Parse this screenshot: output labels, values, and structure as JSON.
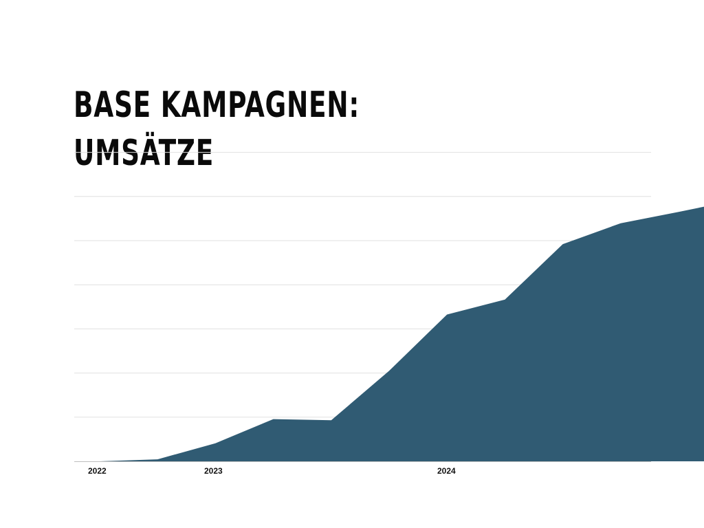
{
  "title_lines": [
    "BASE KAMPAGNEN:",
    "UMSÄTZE"
  ],
  "colors": {
    "area": "#305b73",
    "grid": "#e0e0e0",
    "axis": "#bdbdbd"
  },
  "chart_data": {
    "type": "area",
    "title": "BASE KAMPAGNEN: UMSÄTZE",
    "xlabel": "",
    "ylabel": "",
    "x": [
      2022.0,
      2022.25,
      2022.5,
      2022.75,
      2023.0,
      2023.25,
      2023.5,
      2023.75,
      2024.0,
      2024.25,
      2024.5,
      2024.75
    ],
    "values": [
      0.0,
      0.5,
      4.5,
      10.5,
      10.2,
      22.5,
      36.5,
      40.2,
      54.0,
      59.2,
      62.0,
      65.0
    ],
    "x_tick_labels": [
      {
        "value": 2022.0,
        "label": "2022"
      },
      {
        "value": 2023.0,
        "label": "2023"
      },
      {
        "value": 2024.0,
        "label": "2024"
      }
    ],
    "ylim": [
      0,
      60
    ],
    "y_gridlines": [
      10,
      20,
      30,
      40,
      50,
      60
    ],
    "grid": true,
    "legend": "none"
  }
}
